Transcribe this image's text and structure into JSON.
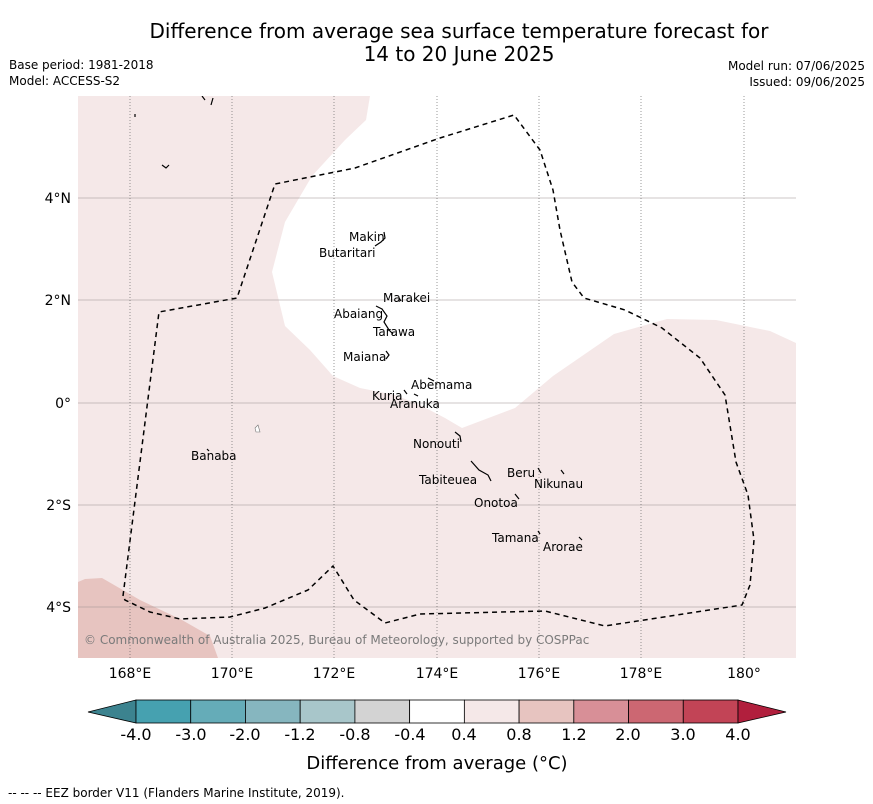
{
  "header": {
    "title_line1": "Difference from average sea surface temperature forecast for",
    "title_line2": "14 to 20 June 2025",
    "base_period": "Base period: 1981-2018",
    "model": "Model: ACCESS-S2",
    "model_run": "Model run: 07/06/2025",
    "issued": "Issued: 09/06/2025"
  },
  "map": {
    "longitude_ticks": [
      "168°E",
      "170°E",
      "172°E",
      "174°E",
      "176°E",
      "178°E",
      "180°"
    ],
    "latitude_ticks": [
      "4°N",
      "2°N",
      "0°",
      "2°S",
      "4°S"
    ],
    "places": [
      {
        "name": "Makin"
      },
      {
        "name": "Butaritari"
      },
      {
        "name": "Marakei"
      },
      {
        "name": "Abaiang"
      },
      {
        "name": "Tarawa"
      },
      {
        "name": "Maiana"
      },
      {
        "name": "Abemama"
      },
      {
        "name": "Kuria"
      },
      {
        "name": "Aranuka"
      },
      {
        "name": "Nonouti"
      },
      {
        "name": "Banaba"
      },
      {
        "name": "Beru"
      },
      {
        "name": "Tabiteuea"
      },
      {
        "name": "Nikunau"
      },
      {
        "name": "Onotoa"
      },
      {
        "name": "Tamana"
      },
      {
        "name": "Arorae"
      }
    ],
    "copyright": "© Commonwealth of Australia 2025, Bureau of Meteorology, supported by COSPPac",
    "fill_colors": {
      "neutral_white": "#ffffff",
      "slight_warm": "#f5e8e8",
      "warm": "#e7c4c0",
      "eez_line": "#000000"
    }
  },
  "colorbar": {
    "title": "Difference from average (°C)",
    "labels": [
      "-4.0",
      "-3.0",
      "-2.0",
      "-1.2",
      "-0.8",
      "-0.4",
      "0.4",
      "0.8",
      "1.2",
      "2.0",
      "3.0",
      "4.0"
    ],
    "colors": [
      "#3c838f",
      "#46a1b0",
      "#65acb8",
      "#86b6bf",
      "#a8c6ca",
      "#d3d3d3",
      "#ffffff",
      "#f5e8e8",
      "#e7c4c0",
      "#d88f97",
      "#cc6772",
      "#c24456",
      "#b11f3d"
    ]
  },
  "footer": {
    "eez_note": "--  --  -- EEZ border V11 (Flanders Marine Institute, 2019)."
  }
}
